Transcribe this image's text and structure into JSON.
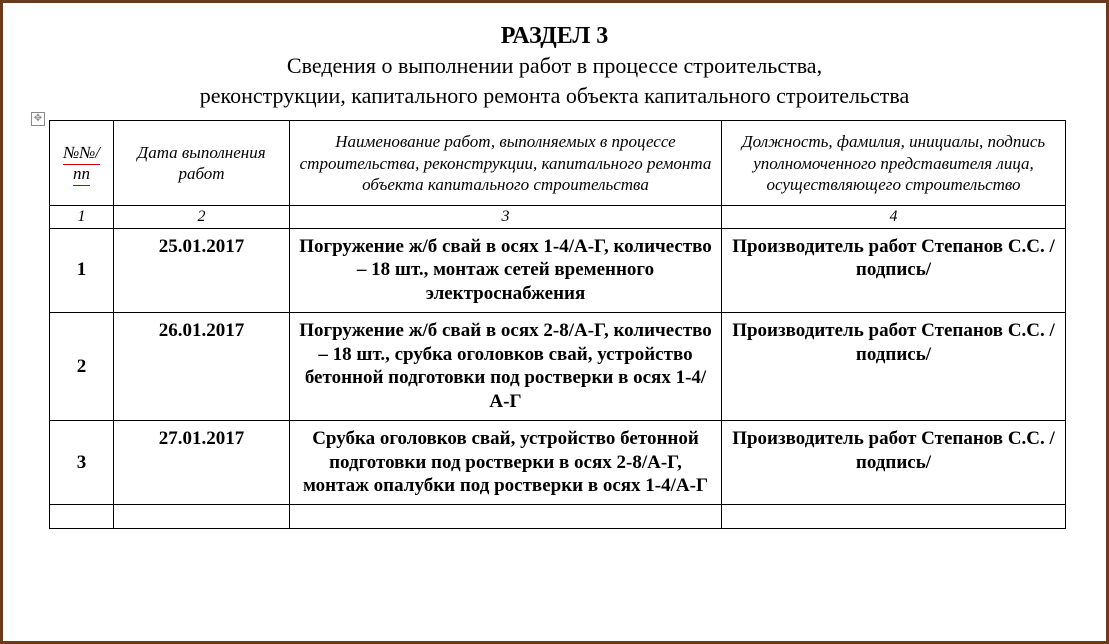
{
  "heading": {
    "section_label": "РАЗДЕЛ 3",
    "subtitle_line1": "Сведения о выполнении работ в процессе строительства,",
    "subtitle_line2": "реконструкции, капитального ремонта объекта капитального строительства"
  },
  "table": {
    "move_handle_glyph": "✥",
    "headers": {
      "col1": "№№/пп",
      "col2": "Дата выполнения работ",
      "col3": "Наименование работ, выполняемых в процессе строительства, реконструкции, капитального ремонта объекта капитального строительства",
      "col4": "Должность, фамилия, инициалы, подпись уполномоченного представителя лица, осуществляющего строительство"
    },
    "numbers": {
      "c1": "1",
      "c2": "2",
      "c3": "3",
      "c4": "4"
    },
    "rows": [
      {
        "num": "1",
        "date": "25.01.2017",
        "works": "Погружение ж/б свай в осях 1-4/А-Г, количество – 18 шт., монтаж сетей временного электроснабжения",
        "signer": "Производитель работ Степанов С.С. /подпись/"
      },
      {
        "num": "2",
        "date": "26.01.2017",
        "works": "Погружение ж/б свай в осях 2-8/А-Г, количество – 18 шт., срубка оголовков свай, устройство бетонной подготовки под ростверки в осях 1-4/А-Г",
        "signer": "Производитель работ Степанов С.С. /подпись/"
      },
      {
        "num": "3",
        "date": "27.01.2017",
        "works": "Срубка оголовков свай, устройство бетонной подготовки под ростверки в осях 2-8/А-Г, монтаж опалубки под ростверки в осях 1-4/А-Г",
        "signer": "Производитель работ Степанов С.С. /подпись/"
      }
    ]
  },
  "colors": {
    "frame_border": "#6b3a1a",
    "cell_border": "#000000",
    "spellcheck_underline": "#cc0000",
    "background": "#ffffff"
  }
}
